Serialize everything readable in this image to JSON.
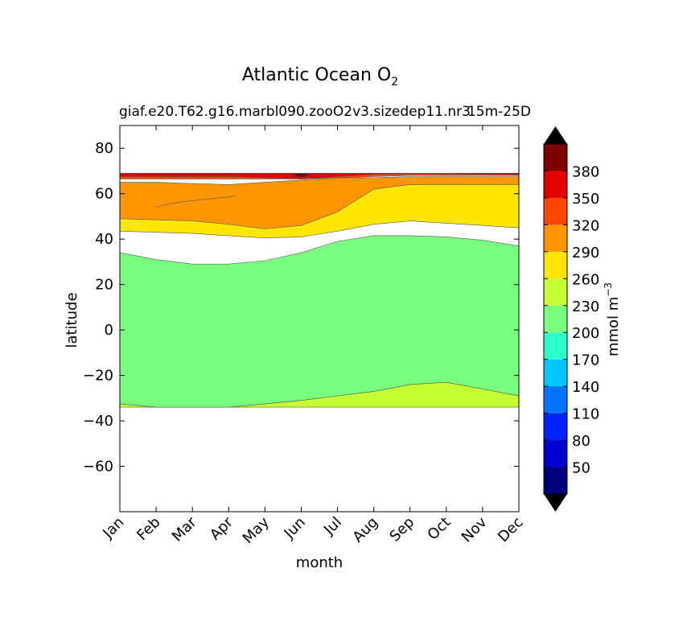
{
  "chart_data": {
    "type": "contour",
    "title_main": "Atlantic Ocean O",
    "title_sub": "2",
    "subtitle_left": "giaf.e20.T62.g16.marbl090.zooO2v3.sizedep11.nr3",
    "subtitle_right": "15m-25D",
    "xlabel": "month",
    "ylabel": "latitude",
    "x_ticks": [
      "Jan",
      "Feb",
      "Mar",
      "Apr",
      "May",
      "Jun",
      "Jul",
      "Aug",
      "Sep",
      "Oct",
      "Nov",
      "Dec"
    ],
    "xlim": [
      0,
      11
    ],
    "ylim": [
      -80,
      90
    ],
    "y_ticks": [
      -60,
      -40,
      -20,
      0,
      20,
      40,
      60,
      80
    ],
    "colorbar": {
      "label": "mmol m",
      "label_exp": "−3",
      "levels": [
        20,
        50,
        80,
        110,
        140,
        170,
        200,
        230,
        260,
        290,
        320,
        350,
        380,
        410
      ],
      "tick_labels": [
        50,
        80,
        110,
        140,
        170,
        200,
        230,
        260,
        290,
        320,
        350,
        380
      ],
      "colors": [
        "#00007f",
        "#0000d3",
        "#0022ff",
        "#0074ff",
        "#00c8ff",
        "#2bffcb",
        "#79ff7e",
        "#c4ff33",
        "#ffe600",
        "#ff9600",
        "#ff4600",
        "#e50000",
        "#7f0000"
      ],
      "extend": "both"
    },
    "data_extent_lat": [
      -34,
      69
    ],
    "bands": [
      {
        "range": "230-260",
        "color": "#c4ff33",
        "x": [
          0,
          1,
          2,
          3,
          4,
          5,
          6,
          7,
          8,
          9,
          10,
          11
        ],
        "lower": [
          -34,
          -34,
          -34,
          -34,
          -34,
          -34,
          -34,
          -34,
          -34,
          -34,
          -34,
          -34
        ],
        "upper": [
          -32.5,
          -34,
          -34,
          -34,
          -32.5,
          -31,
          -29,
          -27,
          -24,
          -23,
          -26,
          -29
        ]
      },
      {
        "range": "200-230",
        "color": "#79ff7e",
        "x": [
          0,
          1,
          2,
          3,
          4,
          5,
          6,
          7,
          8,
          9,
          10,
          11
        ],
        "lower": [
          -32.5,
          -34,
          -34,
          -34,
          -32.5,
          -31,
          -29,
          -27,
          -24,
          -23,
          -26,
          -29
        ],
        "upper": [
          34,
          31,
          29,
          29,
          30.5,
          34,
          39,
          41.5,
          41.5,
          41,
          39.5,
          37
        ]
      },
      {
        "range": "260-290",
        "color": "#ffe600",
        "x": [
          0,
          1,
          2,
          3,
          4,
          5,
          6,
          7,
          8,
          9,
          10,
          11
        ],
        "lower": [
          43.5,
          43,
          42.5,
          41.5,
          40.5,
          41,
          43.5,
          46.5,
          48,
          47,
          46,
          45
        ],
        "upper": [
          64,
          64,
          63.5,
          63,
          64,
          65,
          66,
          66.5,
          67,
          67,
          67,
          67
        ]
      },
      {
        "range": "290-320",
        "color": "#ff9600",
        "x": [
          0,
          1,
          2,
          3,
          4,
          5,
          6,
          7,
          8,
          9,
          10,
          11
        ],
        "lower": [
          49,
          48.5,
          48,
          46.5,
          44.5,
          46,
          52,
          62,
          64,
          64,
          64,
          64
        ],
        "upper": [
          65,
          65,
          64.5,
          64,
          65,
          66,
          67,
          67,
          67.5,
          67.5,
          67.5,
          67.5
        ]
      },
      {
        "range": "320-350",
        "color": "#ff4600",
        "x": [
          0,
          1,
          2,
          3,
          4,
          5,
          6,
          7,
          8,
          9,
          10,
          11
        ],
        "lower": [
          66.5,
          66.5,
          66.5,
          66.5,
          66.5,
          66.5,
          67,
          67.5,
          68,
          68,
          68,
          68
        ]
      },
      {
        "range": "350-380",
        "color": "#e50000",
        "x": [
          0,
          1,
          2,
          3,
          4,
          5,
          6,
          7,
          8,
          9,
          10,
          11
        ],
        "lower": [
          67.5,
          67.5,
          67.5,
          67.5,
          67,
          66.5,
          67.5,
          68.5,
          68.7,
          68.7,
          68.5,
          68.3
        ]
      }
    ]
  }
}
